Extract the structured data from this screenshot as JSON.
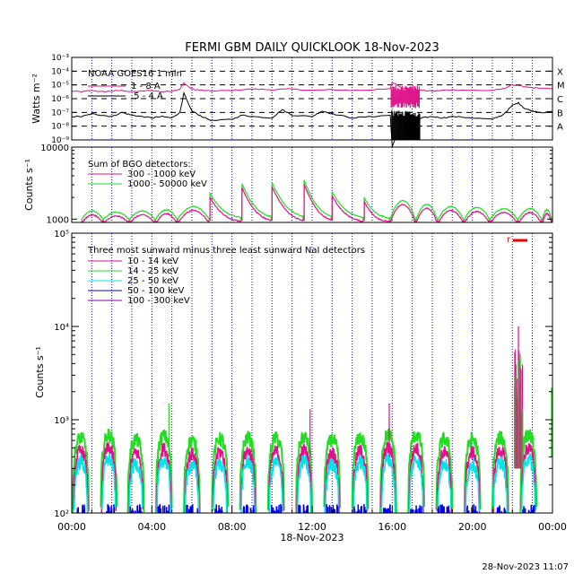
{
  "figure": {
    "title": "FERMI GBM DAILY QUICKLOOK   18-Nov-2023",
    "timestamp": "28-Nov-2023 11:07",
    "xlabel": "18-Nov-2023",
    "x_tick_labels": [
      "00:00",
      "04:00",
      "08:00",
      "12:00",
      "16:00",
      "20:00",
      "00:00"
    ]
  },
  "colors": {
    "axes": "#000000",
    "black": "#000000",
    "magenta": "#e0108a",
    "green": "#22dd22",
    "cyan": "#00e5e5",
    "blue": "#0000ee",
    "purple": "#8800aa",
    "red": "#ee0000",
    "vgrid": "#0000dd"
  },
  "chart_data": [
    {
      "type": "line",
      "ylabel": "Watts m⁻²",
      "ylim_exponents": [
        -9,
        -3
      ],
      "y_tick_labels": [
        "10⁻⁹",
        "10⁻⁸",
        "10⁻⁷",
        "10⁻⁶",
        "10⁻⁵",
        "10⁻⁴",
        "10⁻³"
      ],
      "class_labels": [
        {
          "label": "X",
          "exp": -4
        },
        {
          "label": "M",
          "exp": -5
        },
        {
          "label": "C",
          "exp": -6
        },
        {
          "label": "B",
          "exp": -7
        },
        {
          "label": "A",
          "exp": -8
        }
      ],
      "legend_title": "NOAA GOES16 1 min",
      "series": [
        {
          "name": "1 - 8 A",
          "color": "#e0108a",
          "x_hours": [
            0,
            0.5,
            1,
            1.5,
            2,
            2.5,
            3,
            3.5,
            4,
            4.5,
            5,
            5.4,
            5.6,
            5.8,
            6,
            6.5,
            7,
            8,
            9,
            10,
            11,
            12,
            13,
            14,
            15,
            15.9,
            16,
            16.5,
            17,
            17.5,
            18,
            18.5,
            19,
            20,
            21,
            21.5,
            22,
            22.3,
            22.6,
            23,
            23.5,
            24
          ],
          "log10_flux": [
            -5.45,
            -5.5,
            -5.4,
            -5.5,
            -5.45,
            -5.4,
            -5.5,
            -5.45,
            -5.4,
            -5.5,
            -5.45,
            -5.3,
            -4.85,
            -5.1,
            -5.3,
            -5.4,
            -5.45,
            -5.4,
            -5.3,
            -5.35,
            -5.3,
            -5.4,
            -5.35,
            -5.4,
            -5.35,
            -5.3,
            -4.8,
            -5.2,
            -5.3,
            -5.4,
            -5.45,
            -5.4,
            -5.35,
            -5.4,
            -5.4,
            -5.3,
            -5.0,
            -5.05,
            -5.15,
            -5.2,
            -5.25,
            -5.3
          ]
        },
        {
          "name": ".5 - 4 A",
          "color": "#000000",
          "x_hours": [
            0,
            0.5,
            1,
            1.5,
            2,
            2.5,
            3,
            3.5,
            4,
            4.5,
            5,
            5.4,
            5.6,
            5.8,
            6,
            6.5,
            7,
            8,
            8.5,
            9,
            10,
            10.5,
            11,
            12,
            12.5,
            13,
            14,
            15,
            15.9,
            16,
            16.5,
            17,
            17.5,
            18,
            18.5,
            19,
            20,
            21,
            21.5,
            22,
            22.3,
            22.6,
            23,
            23.5,
            24
          ],
          "log10_flux": [
            -7.3,
            -7.3,
            -7.1,
            -7.2,
            -7.3,
            -7.0,
            -7.2,
            -7.3,
            -7.4,
            -7.3,
            -7.4,
            -7.0,
            -5.6,
            -6.3,
            -6.9,
            -7.3,
            -7.6,
            -7.5,
            -7.2,
            -7.3,
            -7.4,
            -6.8,
            -7.2,
            -7.3,
            -6.9,
            -7.1,
            -7.4,
            -7.3,
            -7.2,
            -9.5,
            -7.6,
            -7.7,
            -7.4,
            -7.3,
            -7.4,
            -7.3,
            -7.4,
            -7.5,
            -7.2,
            -6.5,
            -6.3,
            -6.7,
            -6.9,
            -7.0,
            -6.95
          ]
        }
      ]
    },
    {
      "type": "line",
      "ylabel": "Counts s⁻¹",
      "y_tick_labels": [
        "1000",
        "10000"
      ],
      "legend_title": "Sum of BGO detectors:",
      "series": [
        {
          "name": "300 - 1000 keV",
          "color": "#e0108a"
        },
        {
          "name": "1000 - 50000 keV",
          "color": "#22dd22"
        }
      ],
      "peak_times_hours": [
        0.5,
        1.6,
        2.9,
        4.2,
        5.3,
        6.9,
        8.5,
        10.0,
        11.6,
        13.0,
        14.6,
        15.9,
        17.2,
        18.3,
        19.6,
        20.9,
        22.3,
        23.5
      ],
      "peak_counts_green": [
        1300,
        1250,
        1300,
        1350,
        1500,
        2300,
        3100,
        3200,
        3500,
        2400,
        2000,
        1800,
        1600,
        1500,
        1450,
        1400,
        1400,
        1350
      ]
    },
    {
      "type": "line",
      "ylabel": "Counts s⁻¹",
      "ylim_exponents": [
        2,
        5
      ],
      "y_tick_labels": [
        "10²",
        "10³",
        "10⁴",
        "10⁵"
      ],
      "legend_title": "Three most sunward minus three least sunward NaI detectors",
      "flag_label": "r",
      "series": [
        {
          "name": "10 - 14 keV",
          "color": "#e0108a"
        },
        {
          "name": "14 - 25 keV",
          "color": "#22dd22"
        },
        {
          "name": "25 - 50 keV",
          "color": "#00e5e5"
        },
        {
          "name": "50 - 100 keV",
          "color": "#0000ee"
        },
        {
          "name": "100 - 300 keV",
          "color": "#8800aa"
        }
      ],
      "orbit_peak_hours": [
        0.45,
        1.85,
        3.2,
        4.6,
        6.0,
        7.4,
        8.8,
        10.2,
        11.6,
        13.0,
        14.4,
        15.8,
        17.2,
        18.6,
        20.0,
        21.4,
        22.8
      ],
      "peak_counts_green": [
        650,
        700,
        620,
        680,
        600,
        630,
        650,
        640,
        660,
        620,
        650,
        700,
        690,
        620,
        620,
        650,
        700
      ],
      "spikes": [
        {
          "x_hours": 4.85,
          "counts": 1500,
          "color": "#22dd22"
        },
        {
          "x_hours": 11.9,
          "counts": 1300,
          "color": "#e0108a"
        },
        {
          "x_hours": 15.85,
          "counts": 1500,
          "color": "#e0108a"
        },
        {
          "x_hours": 22.3,
          "counts": 10000,
          "color": "#e0108a"
        },
        {
          "x_hours": 22.35,
          "counts": 4000,
          "color": "#22dd22"
        },
        {
          "x_hours": 23.95,
          "counts": 2200,
          "color": "#22dd22"
        }
      ]
    }
  ]
}
